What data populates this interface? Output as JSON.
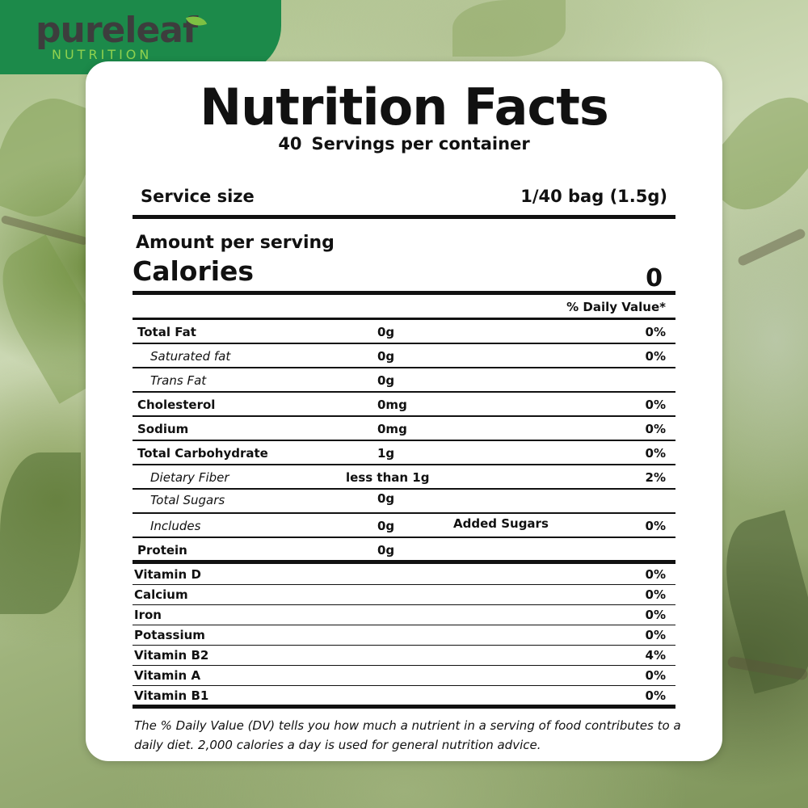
{
  "brand": {
    "name": "pureleaf",
    "tagline": "NUTRITION"
  },
  "label": {
    "title": "Nutrition Facts",
    "servings_count": "40",
    "servings_text": "Servings per container",
    "service_size_label": "Service size",
    "service_size_value": "1/40 bag (1.5g)",
    "amount_per_serving": "Amount per serving",
    "calories_label": "Calories",
    "calories_value": "0",
    "daily_value_header": "% Daily Value*",
    "nutrients": [
      {
        "name": "Total Fat",
        "amount": "0g",
        "dv": "0%",
        "sub": false
      },
      {
        "name": "Saturated fat",
        "amount": "0g",
        "dv": "0%",
        "sub": true
      },
      {
        "name": "Trans Fat",
        "amount": "0g",
        "dv": "",
        "sub": true
      },
      {
        "name": "Cholesterol",
        "amount": "0mg",
        "dv": "0%",
        "sub": false
      },
      {
        "name": "Sodium",
        "amount": "0mg",
        "dv": "0%",
        "sub": false
      },
      {
        "name": "Total Carbohydrate",
        "amount": "1g",
        "dv": "0%",
        "sub": false
      },
      {
        "name": "Dietary Fiber",
        "amount": "less than 1g",
        "dv": "2%",
        "sub": true
      },
      {
        "name": "Total Sugars",
        "amount": "0g",
        "dv": "",
        "sub": true
      },
      {
        "name": "Includes",
        "amount": "0g",
        "extra": "Added Sugars",
        "dv": "0%",
        "sub": true
      },
      {
        "name": "Protein",
        "amount": "0g",
        "dv": "",
        "sub": false
      }
    ],
    "vitamins": [
      {
        "name": "Vitamin D",
        "dv": "0%"
      },
      {
        "name": "Calcium",
        "dv": "0%"
      },
      {
        "name": "Iron",
        "dv": "0%"
      },
      {
        "name": "Potassium",
        "dv": "0%"
      },
      {
        "name": "Vitamin B2",
        "dv": "4%"
      },
      {
        "name": "Vitamin A",
        "dv": "0%"
      },
      {
        "name": "Vitamin B1",
        "dv": "0%"
      }
    ],
    "footnote": "The % Daily Value (DV) tells you how much a nutrient in a serving of food contributes to a daily diet. 2,000 calories a day is used for general nutrition advice."
  }
}
